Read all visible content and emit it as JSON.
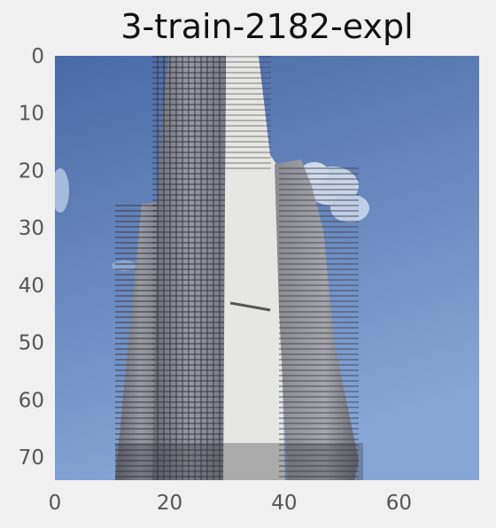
{
  "title": "3-train-2182-expl",
  "colors": {
    "background": "#f0f0f0",
    "sky_top": "#4a6aa6",
    "sky_bottom": "#86a6d6",
    "building_light": "#e9e9e6",
    "building_mid": "#a8a8ac",
    "building_dark": "#4a4a52"
  },
  "chart_data": {
    "type": "image",
    "title": "3-train-2182-expl",
    "xlabel": "",
    "ylabel": "",
    "xlim": [
      0,
      74
    ],
    "ylim": [
      74,
      0
    ],
    "grid": false,
    "x_ticks": [
      {
        "value": 0,
        "label": "0"
      },
      {
        "value": 20,
        "label": "20"
      },
      {
        "value": 40,
        "label": "40"
      },
      {
        "value": 60,
        "label": "60"
      }
    ],
    "y_ticks": [
      {
        "value": 0,
        "label": "0"
      },
      {
        "value": 10,
        "label": "10"
      },
      {
        "value": 20,
        "label": "20"
      },
      {
        "value": 30,
        "label": "30"
      },
      {
        "value": 40,
        "label": "40"
      },
      {
        "value": 50,
        "label": "50"
      },
      {
        "value": 60,
        "label": "60"
      },
      {
        "value": 70,
        "label": "70"
      }
    ]
  }
}
